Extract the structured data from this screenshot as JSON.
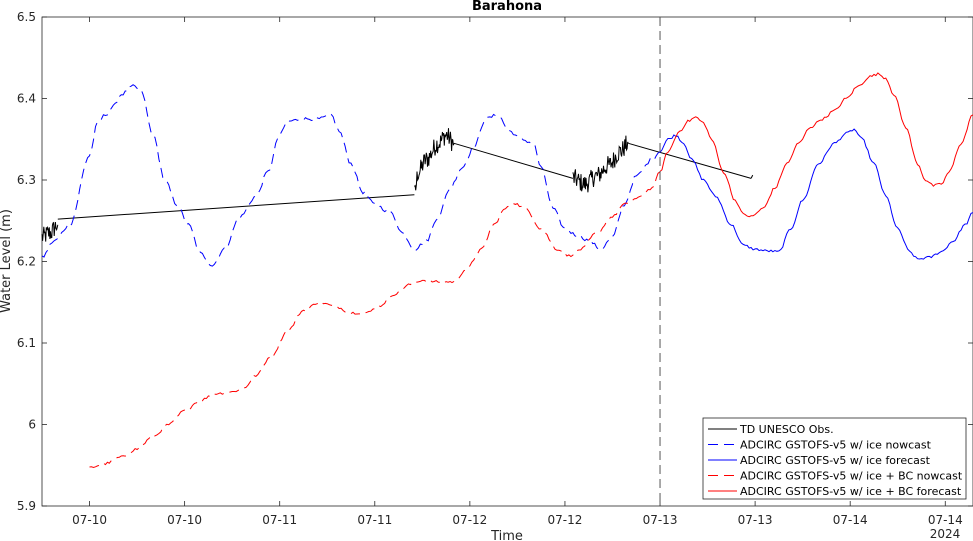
{
  "chart_data": {
    "type": "line",
    "title": "Barahona",
    "xlabel": "Time",
    "ylabel": "Water Level (m)",
    "year_label": "2024",
    "x_tick_labels": [
      "07-10",
      "07-10",
      "07-11",
      "07-11",
      "07-12",
      "07-12",
      "07-13",
      "07-13",
      "07-14",
      "07-14"
    ],
    "x_tick_hours": [
      36,
      48,
      60,
      72,
      84,
      96,
      108,
      120,
      132,
      144
    ],
    "xlim_hours": [
      30,
      147.5
    ],
    "ylim": [
      5.9,
      6.5
    ],
    "y_ticks": [
      5.9,
      6.0,
      6.1,
      6.2,
      6.3,
      6.4,
      6.5
    ],
    "y_tick_labels": [
      "5.9",
      "6",
      "6.1",
      "6.2",
      "6.3",
      "6.4",
      "6.5"
    ],
    "forecast_start_hour": 108,
    "legend_position": "bottom-right",
    "series": [
      {
        "name": "TD UNESCO Obs.",
        "color": "#000000",
        "dash": "solid",
        "noise": 0.012,
        "segments": [
          [
            [
              30.0,
              6.23
            ],
            [
              31.0,
              6.235
            ],
            [
              32.0,
              6.245
            ]
          ],
          [
            [
              32.0,
              6.252
            ],
            [
              77.0,
              6.282
            ]
          ],
          [
            [
              77.0,
              6.282
            ],
            [
              77.5,
              6.31
            ],
            [
              78.5,
              6.325
            ],
            [
              80.0,
              6.345
            ],
            [
              81.0,
              6.355
            ],
            [
              82.0,
              6.345
            ]
          ],
          [
            [
              82.0,
              6.345
            ],
            [
              97.0,
              6.302
            ]
          ],
          [
            [
              97.0,
              6.302
            ],
            [
              98.5,
              6.295
            ],
            [
              100.0,
              6.305
            ],
            [
              101.5,
              6.318
            ],
            [
              103.0,
              6.335
            ],
            [
              104.0,
              6.345
            ]
          ],
          [
            [
              104.0,
              6.345
            ],
            [
              119.5,
              6.302
            ]
          ],
          [
            [
              119.5,
              6.302
            ],
            [
              119.7,
              6.306
            ]
          ]
        ]
      },
      {
        "name": "ADCIRC GSTOFS-v5 w/ ice nowcast",
        "color": "#0000ff",
        "dash": "dashed",
        "noise": 0.002,
        "points": [
          [
            30.0,
            6.205
          ],
          [
            31.5,
            6.225
          ],
          [
            33.5,
            6.245
          ],
          [
            36.0,
            6.33
          ],
          [
            37.0,
            6.37
          ],
          [
            38.0,
            6.38
          ],
          [
            39.0,
            6.39
          ],
          [
            40.0,
            6.405
          ],
          [
            41.5,
            6.415
          ],
          [
            42.5,
            6.41
          ],
          [
            44.0,
            6.355
          ],
          [
            45.5,
            6.3
          ],
          [
            47.0,
            6.27
          ],
          [
            48.5,
            6.245
          ],
          [
            50.0,
            6.21
          ],
          [
            51.5,
            6.195
          ],
          [
            53.0,
            6.215
          ],
          [
            55.0,
            6.255
          ],
          [
            57.0,
            6.28
          ],
          [
            58.5,
            6.31
          ],
          [
            60.0,
            6.355
          ],
          [
            61.0,
            6.372
          ],
          [
            63.0,
            6.375
          ],
          [
            65.0,
            6.375
          ],
          [
            66.5,
            6.38
          ],
          [
            67.5,
            6.36
          ],
          [
            69.0,
            6.32
          ],
          [
            70.5,
            6.285
          ],
          [
            72.0,
            6.27
          ],
          [
            74.0,
            6.26
          ],
          [
            75.5,
            6.235
          ],
          [
            77.0,
            6.215
          ],
          [
            78.5,
            6.225
          ],
          [
            80.0,
            6.255
          ],
          [
            81.5,
            6.29
          ],
          [
            83.0,
            6.315
          ],
          [
            84.5,
            6.34
          ],
          [
            86.0,
            6.375
          ],
          [
            87.5,
            6.38
          ],
          [
            89.0,
            6.36
          ],
          [
            90.5,
            6.35
          ],
          [
            92.0,
            6.345
          ],
          [
            93.0,
            6.315
          ],
          [
            94.5,
            6.265
          ],
          [
            96.0,
            6.24
          ],
          [
            97.5,
            6.232
          ],
          [
            99.0,
            6.226
          ],
          [
            100.5,
            6.215
          ],
          [
            102.0,
            6.23
          ],
          [
            103.5,
            6.27
          ],
          [
            105.0,
            6.305
          ],
          [
            107.0,
            6.325
          ],
          [
            108.0,
            6.335
          ]
        ]
      },
      {
        "name": "ADCIRC GSTOFS-v5 w/ ice forecast",
        "color": "#0000ff",
        "dash": "solid",
        "noise": 0.0015,
        "points": [
          [
            108.0,
            6.335
          ],
          [
            109.0,
            6.35
          ],
          [
            110.0,
            6.355
          ],
          [
            111.0,
            6.345
          ],
          [
            112.0,
            6.325
          ],
          [
            113.5,
            6.3
          ],
          [
            115.0,
            6.28
          ],
          [
            117.0,
            6.245
          ],
          [
            118.5,
            6.22
          ],
          [
            120.0,
            6.215
          ],
          [
            121.5,
            6.213
          ],
          [
            123.0,
            6.212
          ],
          [
            124.5,
            6.24
          ],
          [
            126.0,
            6.275
          ],
          [
            128.0,
            6.32
          ],
          [
            130.0,
            6.345
          ],
          [
            131.5,
            6.357
          ],
          [
            132.5,
            6.362
          ],
          [
            133.5,
            6.35
          ],
          [
            135.0,
            6.32
          ],
          [
            136.5,
            6.28
          ],
          [
            138.0,
            6.24
          ],
          [
            139.5,
            6.212
          ],
          [
            140.5,
            6.203
          ],
          [
            142.0,
            6.205
          ],
          [
            143.5,
            6.212
          ],
          [
            145.0,
            6.225
          ],
          [
            146.5,
            6.245
          ],
          [
            147.5,
            6.26
          ]
        ]
      },
      {
        "name": "ADCIRC GSTOFS-v5 w/ ice + BC nowcast",
        "color": "#ff0000",
        "dash": "dashed",
        "noise": 0.0015,
        "points": [
          [
            36.0,
            5.947
          ],
          [
            38.0,
            5.952
          ],
          [
            40.0,
            5.96
          ],
          [
            42.0,
            5.97
          ],
          [
            44.0,
            5.985
          ],
          [
            46.0,
            6.0
          ],
          [
            48.0,
            6.017
          ],
          [
            50.0,
            6.03
          ],
          [
            52.0,
            6.038
          ],
          [
            54.0,
            6.04
          ],
          [
            55.5,
            6.045
          ],
          [
            57.0,
            6.06
          ],
          [
            59.0,
            6.085
          ],
          [
            61.0,
            6.115
          ],
          [
            63.0,
            6.14
          ],
          [
            65.0,
            6.15
          ],
          [
            67.0,
            6.145
          ],
          [
            69.0,
            6.137
          ],
          [
            71.0,
            6.137
          ],
          [
            72.5,
            6.145
          ],
          [
            74.5,
            6.16
          ],
          [
            76.5,
            6.172
          ],
          [
            78.0,
            6.177
          ],
          [
            80.0,
            6.175
          ],
          [
            82.0,
            6.175
          ],
          [
            83.5,
            6.19
          ],
          [
            85.5,
            6.215
          ],
          [
            87.0,
            6.245
          ],
          [
            88.5,
            6.265
          ],
          [
            89.5,
            6.272
          ],
          [
            91.0,
            6.265
          ],
          [
            93.0,
            6.24
          ],
          [
            95.0,
            6.215
          ],
          [
            96.5,
            6.207
          ],
          [
            98.0,
            6.215
          ],
          [
            100.0,
            6.235
          ],
          [
            102.0,
            6.255
          ],
          [
            103.5,
            6.27
          ],
          [
            105.0,
            6.277
          ],
          [
            107.0,
            6.29
          ],
          [
            108.0,
            6.31
          ]
        ]
      },
      {
        "name": "ADCIRC GSTOFS-v5 w/ ice + BC forecast",
        "color": "#ff0000",
        "dash": "solid",
        "noise": 0.0015,
        "points": [
          [
            108.0,
            6.31
          ],
          [
            109.0,
            6.335
          ],
          [
            110.5,
            6.36
          ],
          [
            111.5,
            6.372
          ],
          [
            112.5,
            6.377
          ],
          [
            113.5,
            6.37
          ],
          [
            114.5,
            6.35
          ],
          [
            116.0,
            6.31
          ],
          [
            117.5,
            6.275
          ],
          [
            118.5,
            6.258
          ],
          [
            119.5,
            6.255
          ],
          [
            121.0,
            6.265
          ],
          [
            122.5,
            6.29
          ],
          [
            124.0,
            6.32
          ],
          [
            125.5,
            6.345
          ],
          [
            127.0,
            6.365
          ],
          [
            128.5,
            6.375
          ],
          [
            130.0,
            6.385
          ],
          [
            131.5,
            6.4
          ],
          [
            133.0,
            6.415
          ],
          [
            134.5,
            6.427
          ],
          [
            135.5,
            6.43
          ],
          [
            136.5,
            6.425
          ],
          [
            137.5,
            6.405
          ],
          [
            139.0,
            6.365
          ],
          [
            140.5,
            6.32
          ],
          [
            141.5,
            6.3
          ],
          [
            142.5,
            6.293
          ],
          [
            143.5,
            6.295
          ],
          [
            144.5,
            6.31
          ],
          [
            146.0,
            6.345
          ],
          [
            147.5,
            6.38
          ]
        ]
      }
    ]
  }
}
